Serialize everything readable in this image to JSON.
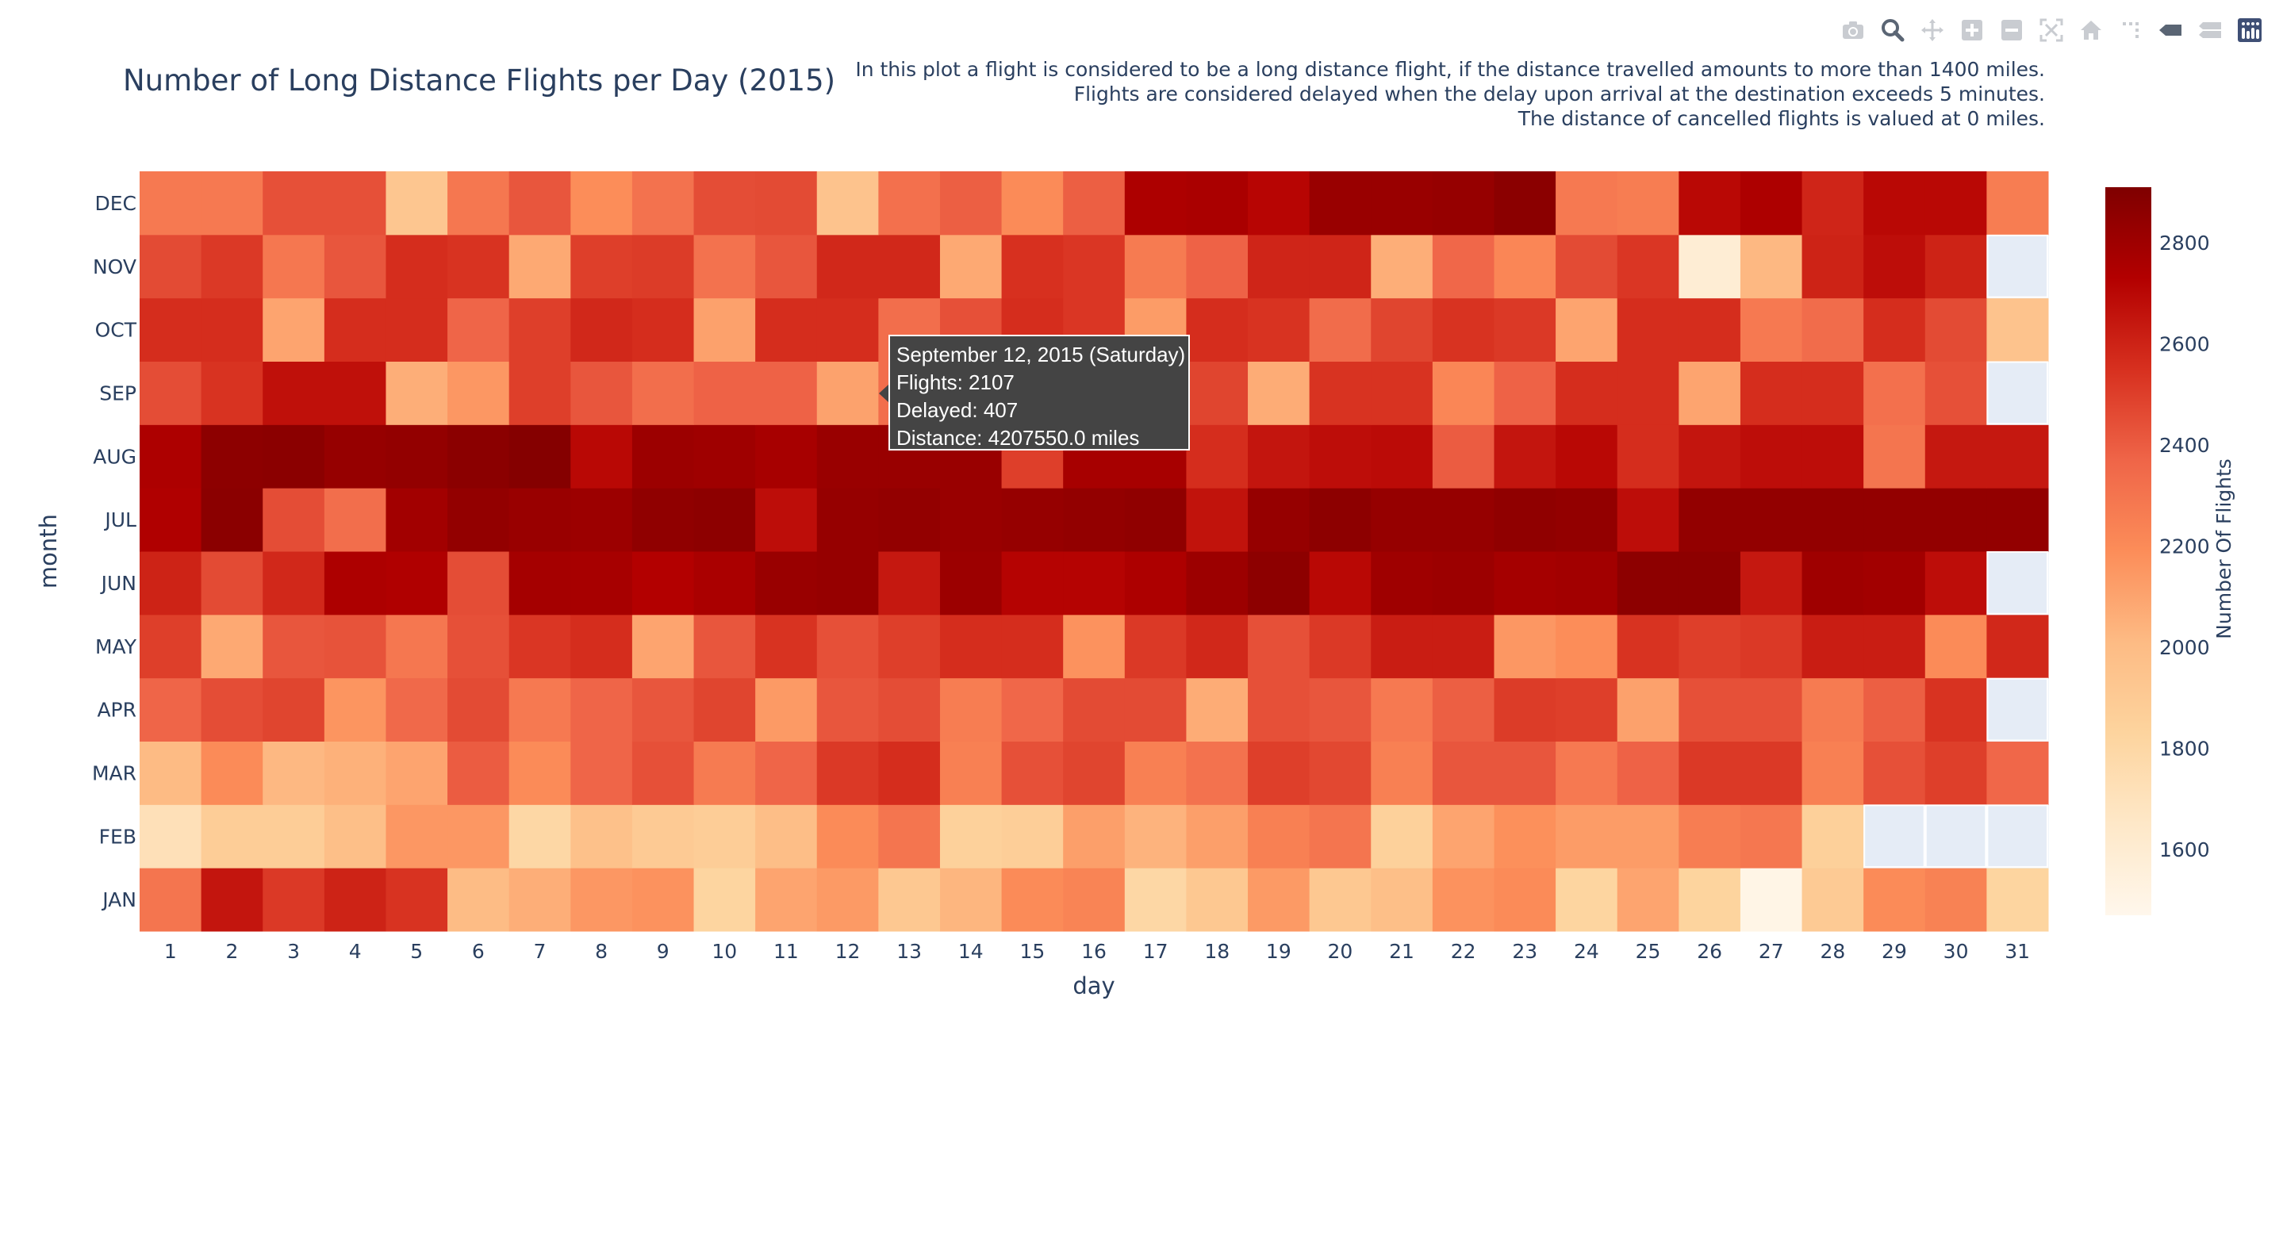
{
  "toolbar": {
    "icons": [
      "camera-icon",
      "zoom-icon",
      "pan-icon",
      "zoom-in-icon",
      "zoom-out-icon",
      "autoscale-icon",
      "reset-axes-icon",
      "spike-lines-icon",
      "hover-closest-icon",
      "hover-compare-icon",
      "plotly-logo-icon"
    ]
  },
  "title": "Number of Long Distance Flights per Day (2015)",
  "note_lines": [
    "In this plot a flight is considered to be a long distance flight, if the distance travelled amounts to more than 1400 miles.",
    "Flights are considered delayed when the delay upon arrival at the destination exceeds 5 minutes.",
    "The distance of cancelled flights is valued at 0 miles."
  ],
  "tooltip": {
    "line1": "September 12, 2015 (Saturday)",
    "line2": "Flights: 2107",
    "line3": "Delayed: 407",
    "line4": "Distance: 4207550.0 miles"
  },
  "colors": {
    "scale": [
      "#fff7ec",
      "#fee8c8",
      "#fdd49e",
      "#fdbb84",
      "#fc8d59",
      "#ef6548",
      "#d7301f",
      "#b30000",
      "#7f0000"
    ],
    "missing": "#e5ecf6",
    "text": "#2a3f5f"
  },
  "chart_data": {
    "type": "heatmap",
    "xlabel": "day",
    "ylabel": "month",
    "colorbar_title": "Number Of Flights",
    "colorbar_ticks": [
      1600,
      1800,
      2000,
      2200,
      2400,
      2600,
      2800
    ],
    "zmin": 1470,
    "zmax": 2910,
    "x": [
      1,
      2,
      3,
      4,
      5,
      6,
      7,
      8,
      9,
      10,
      11,
      12,
      13,
      14,
      15,
      16,
      17,
      18,
      19,
      20,
      21,
      22,
      23,
      24,
      25,
      26,
      27,
      28,
      29,
      30,
      31
    ],
    "y": [
      "JAN",
      "FEB",
      "MAR",
      "APR",
      "MAY",
      "JUN",
      "JUL",
      "AUG",
      "SEP",
      "OCT",
      "NOV",
      "DEC"
    ],
    "z": [
      [
        2300,
        2650,
        2520,
        2600,
        2540,
        2000,
        2060,
        2150,
        2170,
        1820,
        2100,
        2140,
        1920,
        2030,
        2200,
        2230,
        1800,
        1920,
        2140,
        1920,
        1980,
        2170,
        2200,
        1820,
        2100,
        1830,
        1500,
        1900,
        2200,
        2240,
        1820
      ],
      [
        1720,
        1880,
        1880,
        1980,
        2150,
        2150,
        1800,
        1970,
        1900,
        1880,
        1990,
        2200,
        2300,
        1850,
        1870,
        2120,
        2040,
        2120,
        2250,
        2300,
        1850,
        2100,
        2180,
        2130,
        2130,
        2260,
        2290,
        1860,
        null,
        null,
        null
      ],
      [
        2010,
        2200,
        2020,
        2050,
        2100,
        2400,
        2200,
        2370,
        2440,
        2270,
        2370,
        2520,
        2560,
        2250,
        2440,
        2480,
        2250,
        2310,
        2500,
        2470,
        2250,
        2420,
        2420,
        2280,
        2380,
        2520,
        2520,
        2250,
        2440,
        2500,
        2360
      ],
      [
        2370,
        2450,
        2480,
        2160,
        2350,
        2460,
        2280,
        2370,
        2420,
        2480,
        2140,
        2420,
        2450,
        2260,
        2360,
        2460,
        2460,
        2070,
        2440,
        2420,
        2280,
        2390,
        2510,
        2500,
        2110,
        2440,
        2440,
        2270,
        2390,
        2540,
        null
      ],
      [
        2500,
        2080,
        2420,
        2430,
        2290,
        2440,
        2530,
        2560,
        2100,
        2420,
        2540,
        2440,
        2500,
        2560,
        2560,
        2170,
        2520,
        2580,
        2440,
        2520,
        2620,
        2620,
        2150,
        2190,
        2540,
        2500,
        2520,
        2620,
        2620,
        2200,
        2580
      ],
      [
        2600,
        2460,
        2580,
        2750,
        2740,
        2450,
        2780,
        2770,
        2730,
        2760,
        2820,
        2830,
        2640,
        2810,
        2720,
        2720,
        2750,
        2810,
        2860,
        2700,
        2800,
        2810,
        2780,
        2790,
        2860,
        2860,
        2640,
        2800,
        2790,
        2680,
        null
      ],
      [
        2740,
        2870,
        2450,
        2330,
        2790,
        2840,
        2820,
        2810,
        2850,
        2860,
        2680,
        2830,
        2840,
        2820,
        2830,
        2840,
        2850,
        2660,
        2830,
        2860,
        2830,
        2830,
        2850,
        2840,
        2680,
        2840,
        2840,
        2840,
        2840,
        2840,
        2840
      ],
      [
        2750,
        2860,
        2870,
        2830,
        2840,
        2870,
        2890,
        2700,
        2810,
        2800,
        2770,
        2820,
        2820,
        2820,
        2500,
        2770,
        2770,
        2560,
        2650,
        2680,
        2690,
        2400,
        2650,
        2700,
        2560,
        2650,
        2680,
        2680,
        2300,
        2640,
        2640
      ],
      [
        2450,
        2540,
        2670,
        2670,
        2060,
        2150,
        2500,
        2420,
        2330,
        2380,
        2380,
        2107,
        2330,
        2420,
        2480,
        2480,
        2400,
        2480,
        2070,
        2540,
        2540,
        2220,
        2380,
        2560,
        2560,
        2100,
        2560,
        2560,
        2320,
        2440,
        null
      ],
      [
        2560,
        2560,
        2100,
        2560,
        2560,
        2370,
        2500,
        2580,
        2560,
        2110,
        2560,
        2560,
        2330,
        2440,
        2560,
        2530,
        2130,
        2560,
        2540,
        2340,
        2480,
        2540,
        2520,
        2100,
        2560,
        2560,
        2280,
        2340,
        2560,
        2460,
        1950
      ],
      [
        2460,
        2520,
        2290,
        2420,
        2560,
        2540,
        2080,
        2500,
        2510,
        2310,
        2420,
        2580,
        2580,
        2080,
        2550,
        2530,
        2270,
        2380,
        2590,
        2590,
        2060,
        2360,
        2220,
        2460,
        2530,
        1590,
        2020,
        2600,
        2680,
        2600,
        null
      ],
      [
        2280,
        2280,
        2440,
        2440,
        1930,
        2290,
        2420,
        2190,
        2310,
        2450,
        2460,
        1950,
        2320,
        2390,
        2200,
        2390,
        2750,
        2760,
        2710,
        2820,
        2820,
        2830,
        2870,
        2280,
        2260,
        2700,
        2750,
        2590,
        2700,
        2700,
        2260
      ]
    ]
  }
}
